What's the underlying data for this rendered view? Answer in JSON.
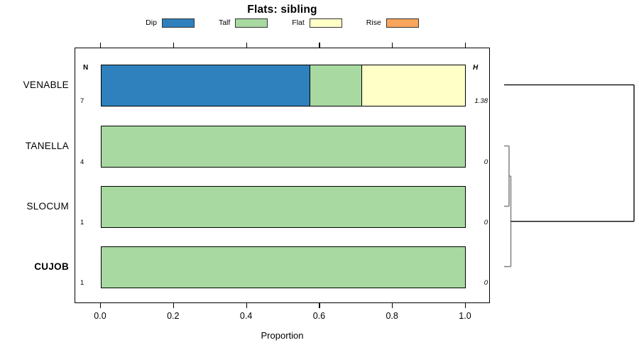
{
  "title": "Flats: sibling",
  "xlabel": "Proportion",
  "columns": {
    "n_header": "N",
    "h_header": "H"
  },
  "legend": {
    "items": [
      {
        "label": "Dip",
        "color": "#2e81bc"
      },
      {
        "label": "Talf",
        "color": "#a7d9a0"
      },
      {
        "label": "Flat",
        "color": "#ffffc8"
      },
      {
        "label": "Rise",
        "color": "#f9a55c"
      }
    ]
  },
  "chart_data": {
    "type": "bar",
    "orientation": "horizontal-stacked",
    "title": "Flats: sibling",
    "xlabel": "Proportion",
    "xlim": [
      0,
      1
    ],
    "x_ticks": [
      "0.0",
      "0.2",
      "0.4",
      "0.6",
      "0.8",
      "1.0"
    ],
    "x_tick_values": [
      0.0,
      0.2,
      0.4,
      0.6,
      0.8,
      1.0
    ],
    "categories": [
      "VENABLE",
      "TANELLA",
      "SLOCUM",
      "CUJOB"
    ],
    "category_bold": [
      false,
      false,
      false,
      true
    ],
    "n_values": [
      "7",
      "4",
      "1",
      "1"
    ],
    "h_values": [
      "1.38",
      "0",
      "0",
      "0"
    ],
    "series": [
      {
        "name": "Dip",
        "values": [
          0.5714,
          0,
          0,
          0
        ]
      },
      {
        "name": "Talf",
        "values": [
          0.1429,
          1,
          1,
          1
        ]
      },
      {
        "name": "Flat",
        "values": [
          0.2857,
          0,
          0,
          0
        ]
      },
      {
        "name": "Rise",
        "values": [
          0,
          0,
          0,
          0
        ]
      }
    ],
    "grid": false,
    "legend_position": "top"
  },
  "dendrogram": {
    "leaf_order": [
      "VENABLE",
      "TANELLA",
      "SLOCUM",
      "CUJOB"
    ],
    "merges": [
      {
        "a": "TANELLA",
        "b": "SLOCUM",
        "height": 0.038,
        "color": "#808080"
      },
      {
        "a": "merge0",
        "b": "CUJOB",
        "height": 0.052,
        "color": "#808080"
      },
      {
        "a": "VENABLE",
        "b": "merge1",
        "height": 1.0,
        "color": "#1a1a1a"
      }
    ]
  }
}
